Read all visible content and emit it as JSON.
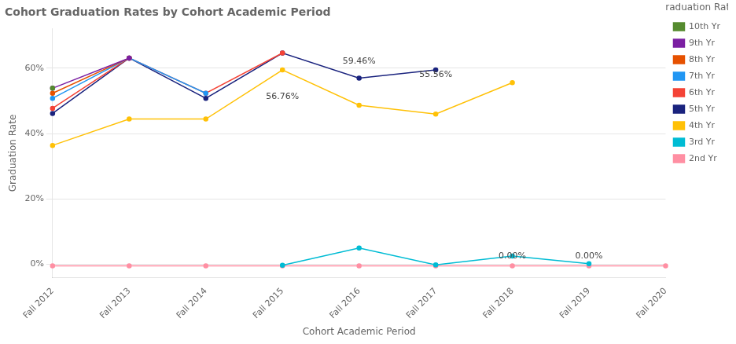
{
  "chart_data": {
    "type": "line",
    "title": "Cohort Graduation Rates by Cohort Academic Period",
    "xlabel": "Cohort Academic Period",
    "ylabel": "Graduation Rate",
    "legend_title": "Graduation Rate",
    "categories": [
      "Fall 2012",
      "Fall 2013",
      "Fall 2014",
      "Fall 2015",
      "Fall 2016",
      "Fall 2017",
      "Fall 2018",
      "Fall 2019",
      "Fall 2020"
    ],
    "series": [
      {
        "name": "2nd Yr",
        "color": "#FF8FA3",
        "values": [
          -0.5,
          -0.5,
          -0.5,
          -0.5,
          -0.5,
          -0.5,
          -0.5,
          -0.5,
          -0.5
        ]
      },
      {
        "name": "3rd Yr",
        "color": "#00BCD4",
        "values": [
          null,
          null,
          null,
          -0.3,
          5.0,
          -0.2,
          2.5,
          0.2,
          null
        ]
      },
      {
        "name": "4th Yr",
        "color": "#FFC107",
        "values": [
          36.36,
          44.44,
          44.44,
          59.46,
          48.65,
          45.95,
          55.56,
          null,
          null
        ]
      },
      {
        "name": "5th Yr",
        "color": "#1A237E",
        "values": [
          46.15,
          63.08,
          50.77,
          64.62,
          56.92,
          59.46,
          null,
          null,
          null
        ]
      },
      {
        "name": "6th Yr",
        "color": "#F44336",
        "values": [
          47.69,
          63.08,
          52.31,
          64.62,
          null,
          null,
          null,
          null,
          null
        ]
      },
      {
        "name": "7th Yr",
        "color": "#2196F3",
        "values": [
          50.77,
          63.08,
          52.31,
          null,
          null,
          null,
          null,
          null,
          null
        ]
      },
      {
        "name": "8th Yr",
        "color": "#E65100",
        "values": [
          52.31,
          63.08,
          null,
          null,
          null,
          null,
          null,
          null,
          null
        ]
      },
      {
        "name": "9th Yr",
        "color": "#7B1FA2",
        "values": [
          53.85,
          63.08,
          null,
          null,
          null,
          null,
          null,
          null,
          null
        ]
      },
      {
        "name": "10th Yr",
        "color": "#558B2F",
        "values": [
          53.85,
          null,
          null,
          null,
          null,
          null,
          null,
          null,
          null
        ]
      }
    ],
    "annotations": [
      {
        "text": "56.76%",
        "x": "Fall 2015",
        "y": 48.65
      },
      {
        "text": "59.46%",
        "x": "Fall 2016",
        "y": 59.46
      },
      {
        "text": "55.56%",
        "x": "Fall 2017",
        "y": 55.56
      },
      {
        "text": "0.00%",
        "x": "Fall 2018",
        "y": 0.0
      },
      {
        "text": "0.00%",
        "x": "Fall 2019",
        "y": 0.0
      }
    ],
    "ylim": [
      -4,
      72
    ],
    "yticks": [
      {
        "value": 0,
        "label": "0%"
      },
      {
        "value": 20,
        "label": "20%"
      },
      {
        "value": 40,
        "label": "40%"
      },
      {
        "value": 60,
        "label": "60%"
      }
    ],
    "grid": true,
    "legend": "right",
    "marker": "o"
  }
}
